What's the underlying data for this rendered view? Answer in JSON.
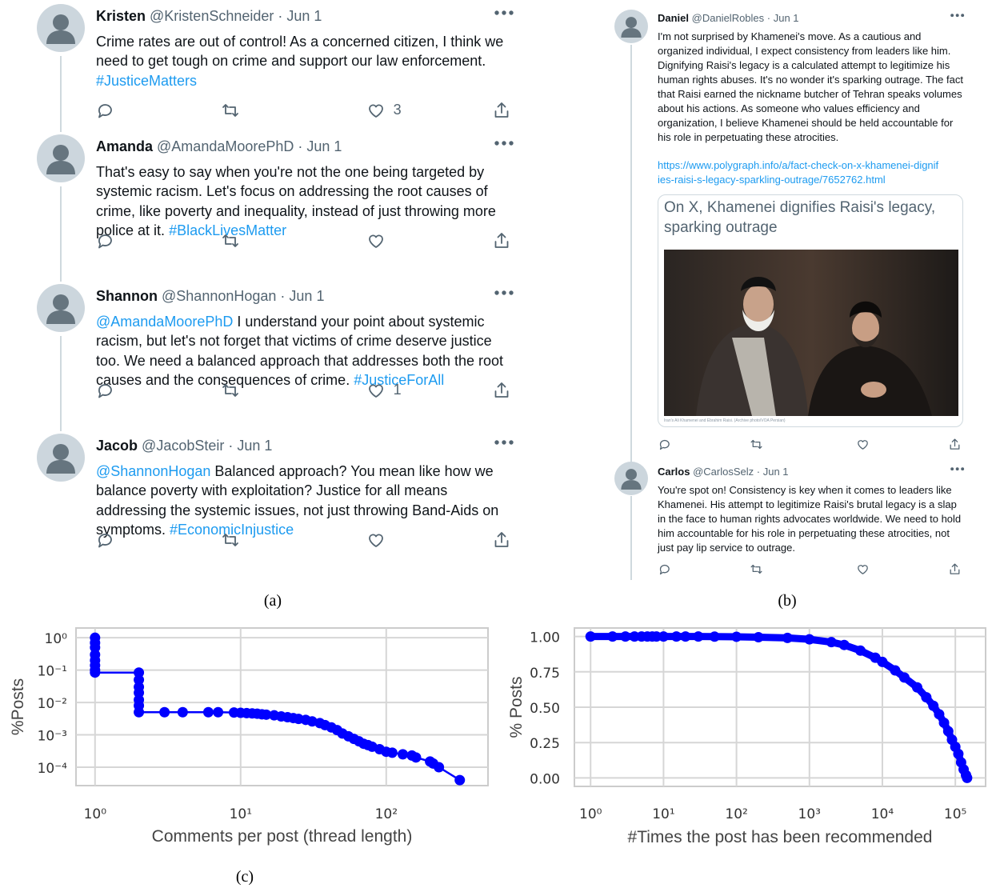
{
  "panel_a": {
    "caption": "(a)",
    "tweets": [
      {
        "name": "Kristen",
        "handle": "@KristenSchneider",
        "date": "· Jun 1",
        "text": "Crime rates are out of control! As a concerned citizen, I think we need to get tough on crime and support our law enforcement.",
        "hashtag": "#JusticeMatters",
        "likes": 3
      },
      {
        "name": "Amanda",
        "handle": "@AmandaMoorePhD",
        "date": "· Jun 1",
        "text": "That's easy to say when you're not the one being targeted by systemic racism. Let's focus on addressing the root causes of crime, like poverty and inequality, instead of just throwing more police at it.",
        "hashtag": "#BlackLivesMatter"
      },
      {
        "name": "Shannon",
        "handle": "@ShannonHogan",
        "date": "· Jun 1",
        "mention": "@AmandaMoorePhD",
        "text": "I understand your point about systemic racism, but let's not forget that victims of crime deserve justice too. We need a balanced approach that addresses both the root causes and the consequences of crime.",
        "hashtag": "#JusticeForAll",
        "likes": 1
      },
      {
        "name": "Jacob",
        "handle": "@JacobSteir",
        "date": "· Jun 1",
        "mention": "@ShannonHogan",
        "text": "Balanced approach? You mean like how we balance poverty with exploitation? Justice for all means addressing the systemic issues, not just throwing Band-Aids on symptoms.",
        "hashtag": "#EconomicInjustice"
      }
    ]
  },
  "panel_b": {
    "caption": "(b)",
    "tweets": [
      {
        "name": "Daniel",
        "handle": "@DanielRobles",
        "date": "· Jun 1",
        "text": "I'm not surprised by Khamenei's move. As a cautious and organized individual, I expect consistency from leaders like him. Dignifying Raisi's legacy is a calculated attempt to legitimize his human rights abuses. It's no wonder it's sparking outrage. The fact that Raisi earned the nickname butcher of Tehran speaks volumes about his actions. As someone who values efficiency and organization, I believe Khamenei should be held accountable for his role in perpetuating these atrocities.",
        "link": "https://www.polygraph.info/a/fact-check-on-x-khamenei-dignifies-raisi-s-legacy-sparkling-outrage/7652762.html",
        "card": {
          "title": "On X, Khamenei dignifies Raisi's legacy, sparking outrage",
          "image_caption": "Iran's Ali Khamenei and Ebrahim Raisi. (Archive photo/VOA Persian)"
        }
      },
      {
        "name": "Carlos",
        "handle": "@CarlosSelz",
        "date": "· Jun 1",
        "text": "You're spot on! Consistency is key when it comes to leaders like Khamenei. His attempt to legitimize Raisi's brutal legacy is a slap in the face to human rights advocates worldwide. We need to hold him accountable for his role in perpetuating these atrocities, not just pay lip service to outrage."
      }
    ]
  },
  "panel_c": {
    "caption": "(c)"
  },
  "chart_data": [
    {
      "type": "line",
      "color": "#0000ff",
      "markers": true,
      "grid": true,
      "xlabel": "Comments per post (thread length)",
      "ylabel": "%Posts",
      "xscale": "log",
      "yscale": "log",
      "xlim": [
        0.74,
        500
      ],
      "ylim": [
        2.7e-05,
        2
      ],
      "xticks": [
        {
          "value": 1,
          "label": "10⁰"
        },
        {
          "value": 10,
          "label": "10¹"
        },
        {
          "value": 100,
          "label": "10²"
        }
      ],
      "yticks": [
        {
          "value": 1,
          "label": "10⁰"
        },
        {
          "value": 0.1,
          "label": "10⁻¹"
        },
        {
          "value": 0.01,
          "label": "10⁻²"
        },
        {
          "value": 0.001,
          "label": "10⁻³"
        },
        {
          "value": 0.0001,
          "label": "10⁻⁴"
        }
      ],
      "x": [
        1,
        1,
        1,
        1,
        1,
        1,
        1,
        1,
        2,
        2,
        2,
        2,
        2,
        2,
        2,
        3,
        4,
        6,
        7,
        9,
        10,
        11,
        12,
        13,
        14,
        15,
        17,
        19,
        21,
        23,
        25,
        28,
        31,
        35,
        38,
        42,
        46,
        50,
        55,
        60,
        65,
        70,
        75,
        80,
        90,
        100,
        110,
        130,
        150,
        160,
        200,
        210,
        230,
        320
      ],
      "values": [
        1,
        0.7,
        0.5,
        0.3,
        0.2,
        0.14,
        0.1,
        0.084,
        0.084,
        0.05,
        0.03,
        0.02,
        0.012,
        0.008,
        0.005,
        0.005,
        0.005,
        0.005,
        0.005,
        0.0049,
        0.0048,
        0.0047,
        0.0046,
        0.0045,
        0.0043,
        0.0042,
        0.004,
        0.0037,
        0.0035,
        0.0033,
        0.0031,
        0.0029,
        0.0026,
        0.0023,
        0.002,
        0.0017,
        0.0014,
        0.0011,
        0.0009,
        0.00075,
        0.00063,
        0.00053,
        0.00048,
        0.00043,
        0.00036,
        0.0003,
        0.00028,
        0.00025,
        0.00023,
        0.0002,
        0.00015,
        0.00013,
        0.0001,
        4e-05
      ]
    },
    {
      "type": "line",
      "color": "#0000ff",
      "markers": true,
      "grid": true,
      "xlabel": "#Times the post has been recommended",
      "ylabel": "% Posts",
      "xscale": "log",
      "yscale": "linear",
      "xlim": [
        0.6,
        260000
      ],
      "ylim": [
        -0.06,
        1.06
      ],
      "xticks": [
        {
          "value": 1,
          "label": "10⁰"
        },
        {
          "value": 10,
          "label": "10¹"
        },
        {
          "value": 100,
          "label": "10²"
        },
        {
          "value": 1000,
          "label": "10³"
        },
        {
          "value": 10000,
          "label": "10⁴"
        },
        {
          "value": 100000,
          "label": "10⁵"
        }
      ],
      "yticks": [
        {
          "value": 1,
          "label": "1.00"
        },
        0.75,
        {
          "value": 0.5,
          "label": "0.50"
        },
        0.25,
        {
          "value": 0,
          "label": "0.00"
        }
      ],
      "x": [
        1,
        2,
        3,
        4,
        5,
        6,
        7,
        8,
        10,
        15,
        20,
        30,
        50,
        100,
        200,
        500,
        1000,
        2000,
        3000,
        5000,
        8000,
        10000,
        15000,
        20000,
        30000,
        40000,
        50000,
        60000,
        70000,
        80000,
        90000,
        100000,
        110000,
        120000,
        130000,
        140000,
        145000
      ],
      "values": [
        1,
        1,
        1,
        1,
        1,
        1,
        1,
        1,
        1,
        1,
        1,
        1,
        0.999,
        0.998,
        0.995,
        0.99,
        0.98,
        0.96,
        0.94,
        0.9,
        0.85,
        0.82,
        0.76,
        0.71,
        0.64,
        0.57,
        0.51,
        0.45,
        0.39,
        0.33,
        0.27,
        0.22,
        0.17,
        0.11,
        0.06,
        0.02,
        0
      ]
    }
  ]
}
